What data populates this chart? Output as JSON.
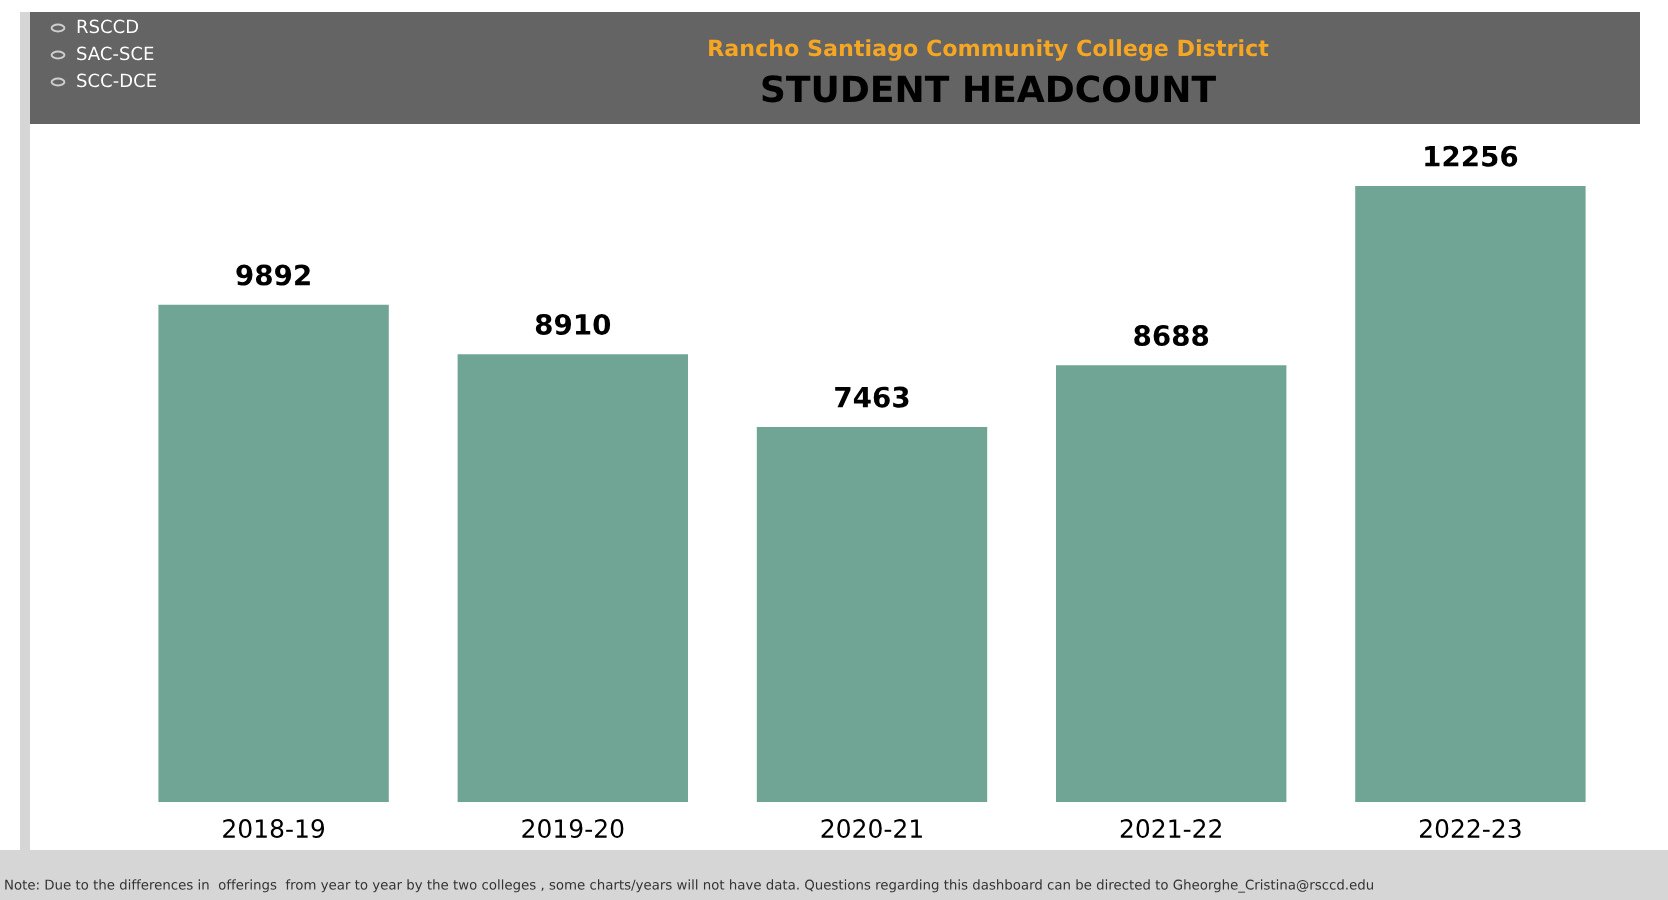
{
  "chart_data": {
    "type": "bar",
    "title": "STUDENT HEADCOUNT",
    "subtitle": "Rancho Santiago Community College District",
    "categories": [
      "2018-19",
      "2019-20",
      "2020-21",
      "2021-22",
      "2022-23"
    ],
    "values": [
      9892,
      8910,
      7463,
      8688,
      12256
    ],
    "color": "#70a494",
    "data_labels": true,
    "grid": false,
    "legend": false,
    "annotations": [
      "RSCCD",
      "SAC-SCE",
      "SCC-DCE",
      "Note: Due to the differences in  offerings  from year to year by the two colleges , some charts/years will not have data. Questions regarding this dashboard can be directed to Gheorghe_Cristina@rsccd.edu"
    ]
  }
}
